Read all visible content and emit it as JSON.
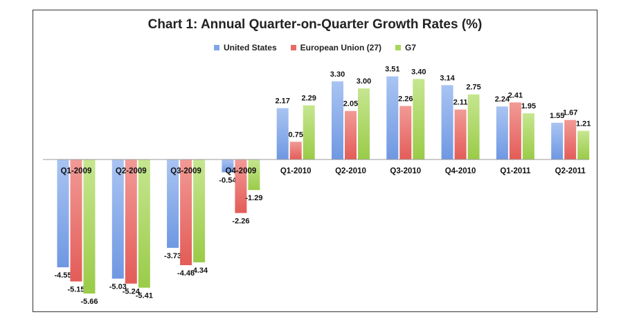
{
  "chart_data": {
    "type": "bar",
    "title": "Chart 1: Annual Quarter-on-Quarter Growth Rates (%)",
    "xlabel": "",
    "ylabel": "",
    "categories": [
      "Q1-2009",
      "Q2-2009",
      "Q3-2009",
      "Q4-2009",
      "Q1-2010",
      "Q2-2010",
      "Q3-2010",
      "Q4-2010",
      "Q1-2011",
      "Q2-2011"
    ],
    "series": [
      {
        "name": "United States",
        "color": "#7fa6e8",
        "values": [
          -4.55,
          -5.03,
          -3.73,
          -0.54,
          2.17,
          3.3,
          3.51,
          3.14,
          2.24,
          1.55
        ]
      },
      {
        "name": "European Union (27)",
        "color": "#e86a66",
        "values": [
          -5.15,
          -5.24,
          -4.46,
          -2.26,
          0.75,
          2.05,
          2.26,
          2.11,
          2.41,
          1.67
        ]
      },
      {
        "name": "G7",
        "color": "#a9d65a",
        "values": [
          -5.66,
          -5.41,
          -4.34,
          -1.29,
          2.29,
          3.0,
          3.4,
          2.75,
          1.95,
          1.21
        ]
      }
    ],
    "ylim": [
      -6.1,
      3.9
    ],
    "grid": false,
    "legend_position": "top-center"
  }
}
